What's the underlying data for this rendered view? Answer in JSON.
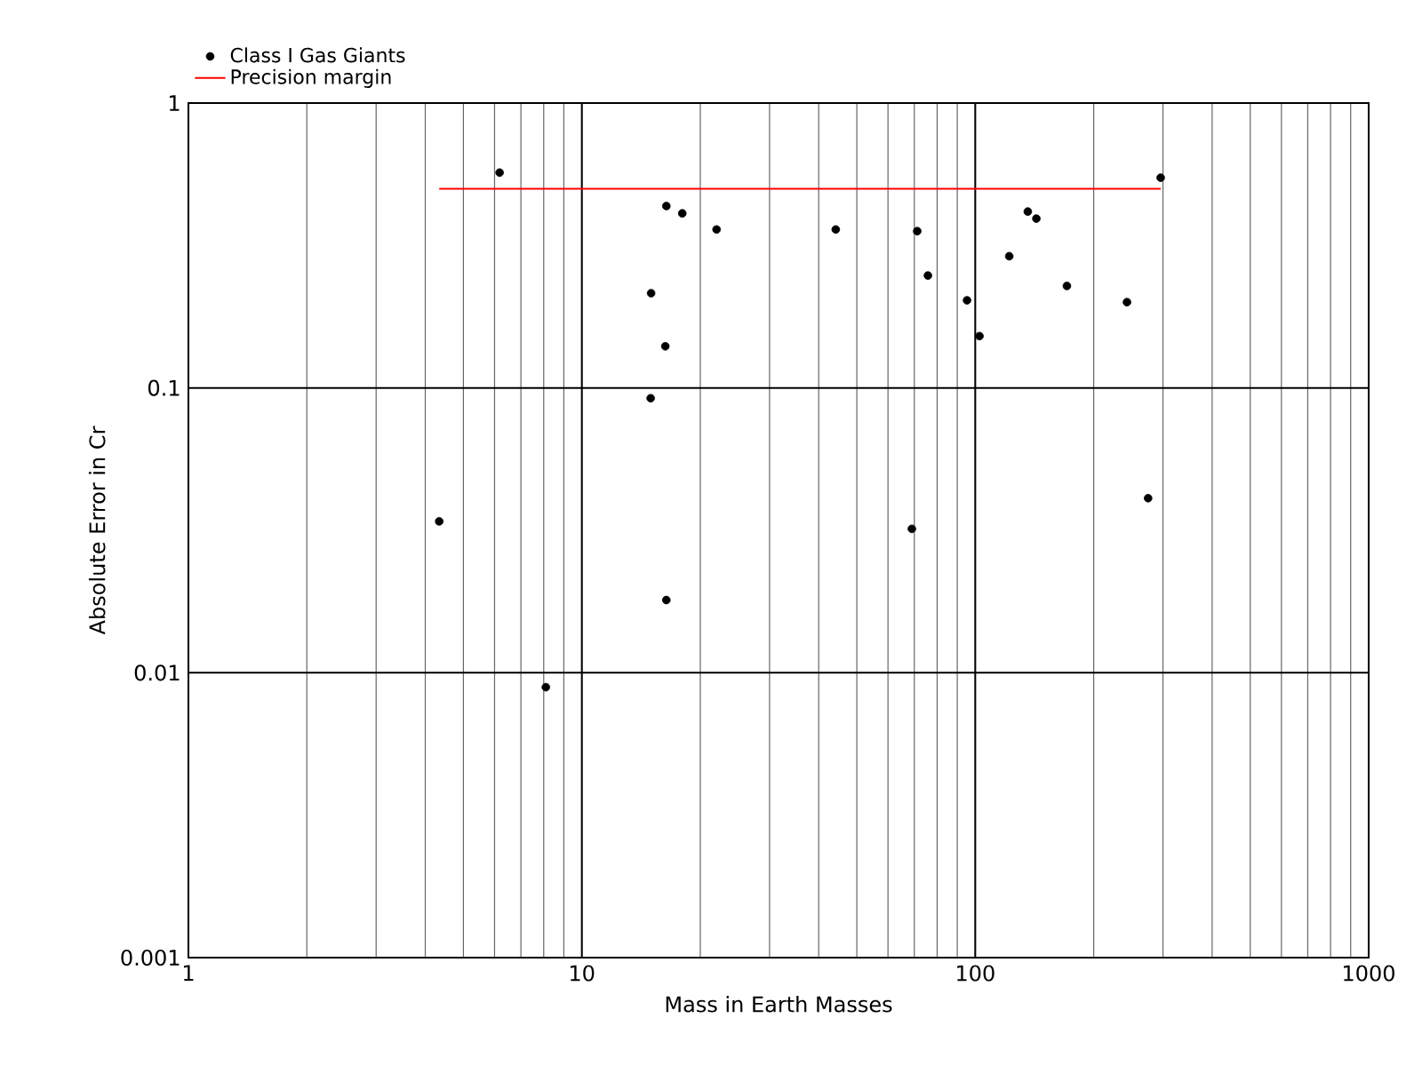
{
  "chart_data": {
    "type": "scatter",
    "xlabel": "Mass in Earth Masses",
    "ylabel": "Absolute Error in Cr",
    "log": "xy",
    "xlim": [
      1,
      1000
    ],
    "ylim": [
      0.001,
      1
    ],
    "xticks": [
      1,
      10,
      100,
      1000
    ],
    "yticks": [
      0.001,
      0.01,
      0.1,
      1
    ],
    "grid": true,
    "legend": "top left",
    "marker": "circle",
    "series": [
      {
        "name": "Class I Gas Giants",
        "color": "#000000",
        "x": [
          4.34,
          6.18,
          8.1,
          14.96,
          15,
          16.3,
          16.4,
          16.4,
          18.0,
          22.0,
          44.2,
          69.0,
          71.2,
          75.8,
          95.3,
          102.5,
          122,
          136,
          143,
          171,
          243,
          275,
          296
        ],
        "values": [
          0.034,
          0.57,
          0.0089,
          0.092,
          0.215,
          0.14,
          0.435,
          0.018,
          0.41,
          0.36,
          0.36,
          0.032,
          0.355,
          0.248,
          0.203,
          0.152,
          0.29,
          0.416,
          0.393,
          0.228,
          0.2,
          0.041,
          0.547
        ]
      },
      {
        "name": "Precision margin",
        "type": "line",
        "color": "#ff0000",
        "marker": "none",
        "x": [
          4.34,
          296
        ],
        "values": [
          0.5,
          0.5
        ]
      }
    ]
  }
}
